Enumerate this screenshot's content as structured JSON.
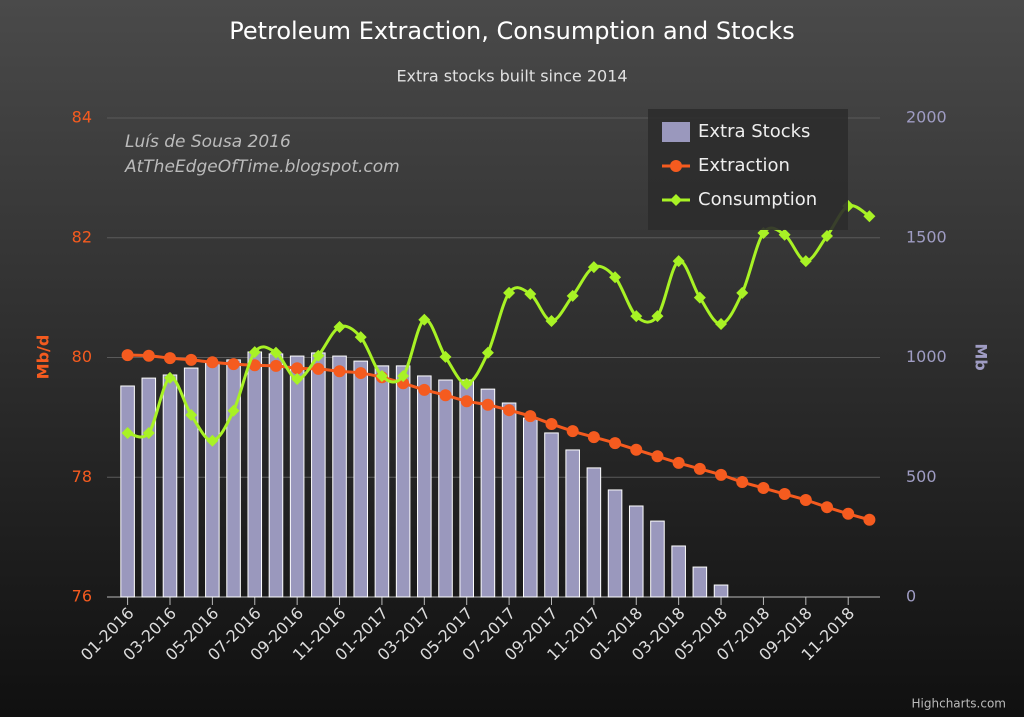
{
  "chart_data": {
    "type": "bar-line",
    "title": "Petroleum Extraction, Consumption and Stocks",
    "subtitle": "Extra stocks built since 2014",
    "annotation": [
      "Luís de Sousa 2016",
      "AtTheEdgeOfTime.blogspot.com"
    ],
    "credits": "Highcharts.com",
    "y_label": "Mb/d",
    "y2_label": "Mb",
    "categories": [
      "01-2016",
      null,
      "03-2016",
      null,
      "05-2016",
      null,
      "07-2016",
      null,
      "09-2016",
      null,
      "11-2016",
      null,
      "01-2017",
      null,
      "03-2017",
      null,
      "05-2017",
      null,
      "07-2017",
      null,
      "09-2017",
      null,
      "11-2017",
      null,
      "01-2018",
      null,
      "03-2018",
      null,
      "05-2018",
      null,
      "07-2018",
      null,
      "09-2018",
      null,
      "11-2018",
      null
    ],
    "ylim": [
      76,
      84
    ],
    "yticks": [
      76,
      78,
      80,
      82,
      84
    ],
    "y2lim": [
      0,
      2000
    ],
    "y2ticks": [
      0,
      500,
      1000,
      1500,
      2000
    ],
    "grid": true,
    "legend": "top-right",
    "series": [
      {
        "name": "Extra Stocks",
        "type": "bar",
        "axis": "y2",
        "color": "#9a98bd",
        "values": [
          881,
          914,
          927,
          956,
          977,
          990,
          1023,
          1015,
          1006,
          1019,
          1006,
          985,
          965,
          965,
          923,
          906,
          906,
          868,
          810,
          747,
          685,
          614,
          539,
          447,
          380,
          317,
          213,
          125,
          50,
          null,
          null,
          null,
          null,
          null,
          null,
          null
        ]
      },
      {
        "name": "Extraction",
        "type": "line",
        "marker": "circle",
        "color": "#f55b1f",
        "values": [
          80.04,
          80.03,
          79.99,
          79.96,
          79.92,
          79.89,
          79.87,
          79.86,
          79.82,
          79.81,
          79.77,
          79.74,
          79.67,
          79.57,
          79.46,
          79.37,
          79.27,
          79.21,
          79.12,
          79.02,
          78.89,
          78.77,
          78.67,
          78.57,
          78.46,
          78.35,
          78.24,
          78.14,
          78.04,
          77.92,
          77.82,
          77.72,
          77.62,
          77.5,
          77.39,
          77.29
        ]
      },
      {
        "name": "Consumption",
        "type": "line",
        "marker": "diamond",
        "color": "#a8f225",
        "values": [
          78.74,
          78.74,
          79.66,
          79.04,
          78.61,
          79.11,
          80.09,
          80.08,
          79.64,
          80.03,
          80.51,
          80.34,
          79.69,
          79.69,
          80.63,
          80.01,
          79.56,
          80.08,
          81.08,
          81.06,
          80.61,
          81.03,
          81.51,
          81.34,
          80.69,
          80.69,
          81.61,
          81.0,
          80.56,
          81.08,
          82.08,
          82.05,
          81.61,
          82.03,
          82.53,
          82.36
        ]
      }
    ]
  }
}
